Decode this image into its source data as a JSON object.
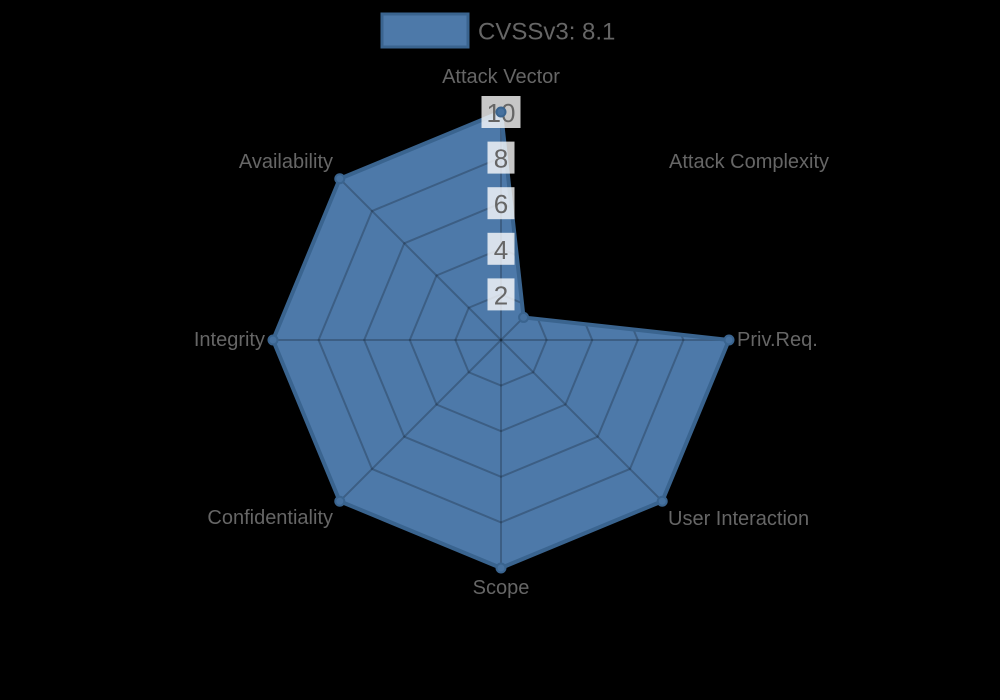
{
  "figure": {
    "legend_label": "CVSSv3: 8.1"
  },
  "chart_data": {
    "type": "radar",
    "title": "",
    "legend": {
      "position": "top",
      "entries": [
        "CVSSv3: 8.1"
      ]
    },
    "categories": [
      "Attack Vector",
      "Attack Complexity",
      "Priv.Req.",
      "User Interaction",
      "Scope",
      "Confidentiality",
      "Integrity",
      "Availability"
    ],
    "series": [
      {
        "name": "CVSSv3: 8.1",
        "values": [
          10,
          1.4,
          10,
          10,
          10,
          10,
          10,
          10
        ]
      }
    ],
    "ticks": [
      2,
      4,
      6,
      8,
      10
    ],
    "rmax": 10,
    "grid": true,
    "grid_shape": "polygon",
    "axes_start": "top-clockwise",
    "colors": {
      "fill": "#4d79a9",
      "border": "#3a648f",
      "point": "#46719f",
      "grid_line": "rgba(0,0,0,0.22)",
      "text": "#666666",
      "tick_backdrop": "rgba(255,255,255,0.78)",
      "background": "#000000"
    }
  }
}
